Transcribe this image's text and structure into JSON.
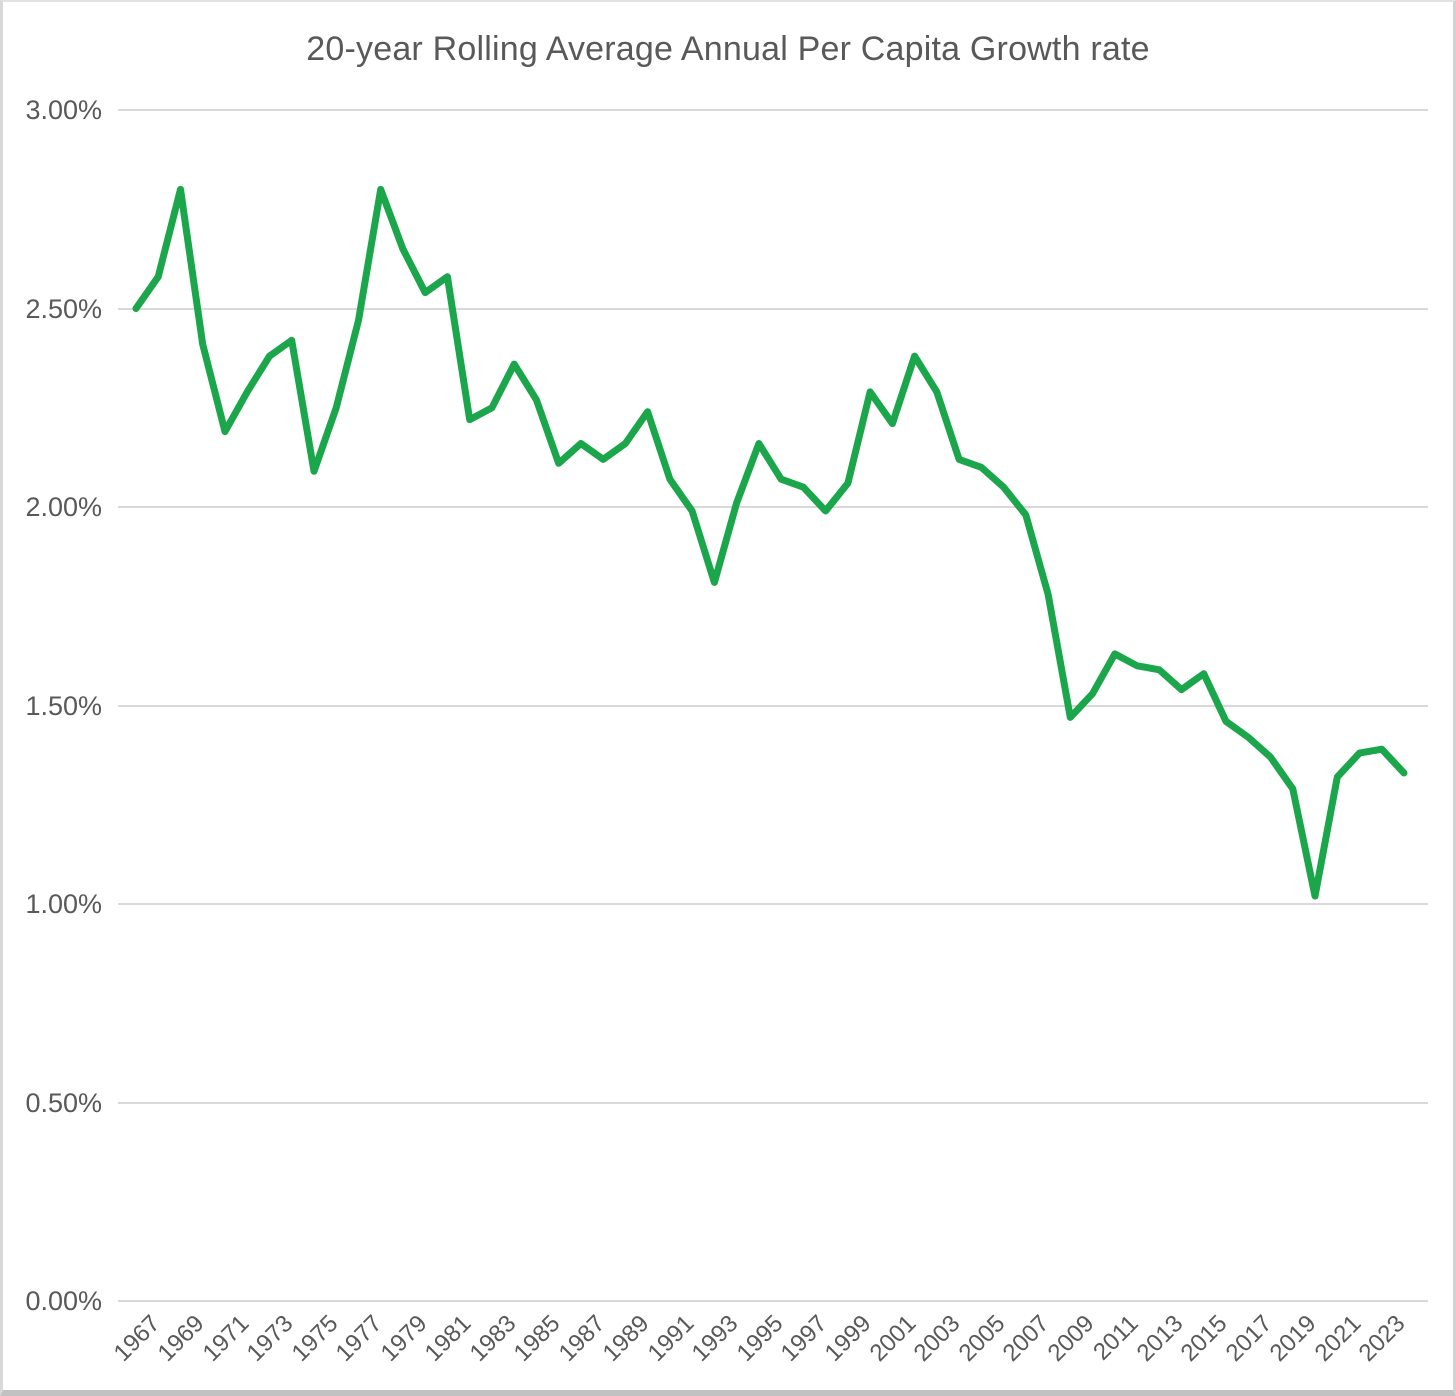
{
  "title": "20-year Rolling Average Annual Per Capita Growth rate",
  "chart_data": {
    "type": "line",
    "title": "20-year Rolling Average Annual Per Capita Growth rate",
    "xlabel": "",
    "ylabel": "",
    "ylim": [
      0,
      3.0
    ],
    "grid": true,
    "legend": "none",
    "line_color": "#1CA64C",
    "gridline_color": "#d9d9d9",
    "text_color": "#595959",
    "y_tick_labels": [
      "0.00%",
      "0.50%",
      "1.00%",
      "1.50%",
      "2.00%",
      "2.50%",
      "3.00%"
    ],
    "y_tick_values": [
      0,
      0.5,
      1.0,
      1.5,
      2.0,
      2.5,
      3.0
    ],
    "x_tick_labels": [
      "1967",
      "1969",
      "1971",
      "1973",
      "1975",
      "1977",
      "1979",
      "1981",
      "1983",
      "1985",
      "1987",
      "1989",
      "1991",
      "1993",
      "1995",
      "1997",
      "1999",
      "2001",
      "2003",
      "2005",
      "2007",
      "2009",
      "2011",
      "2013",
      "2015",
      "2017",
      "2019",
      "2021",
      "2023"
    ],
    "x": [
      1967,
      1968,
      1969,
      1970,
      1971,
      1972,
      1973,
      1974,
      1975,
      1976,
      1977,
      1978,
      1979,
      1980,
      1981,
      1982,
      1983,
      1984,
      1985,
      1986,
      1987,
      1988,
      1989,
      1990,
      1991,
      1992,
      1993,
      1994,
      1995,
      1996,
      1997,
      1998,
      1999,
      2000,
      2001,
      2002,
      2003,
      2004,
      2005,
      2006,
      2007,
      2008,
      2009,
      2010,
      2011,
      2012,
      2013,
      2014,
      2015,
      2016,
      2017,
      2018,
      2019,
      2020,
      2021,
      2022,
      2023,
      2024
    ],
    "series": [
      {
        "name": "20-year rolling average annual per capita growth rate (%)",
        "values": [
          2.5,
          2.58,
          2.8,
          2.41,
          2.19,
          2.29,
          2.38,
          2.42,
          2.09,
          2.25,
          2.47,
          2.8,
          2.65,
          2.54,
          2.58,
          2.22,
          2.25,
          2.36,
          2.27,
          2.11,
          2.16,
          2.12,
          2.16,
          2.24,
          2.07,
          1.99,
          1.81,
          2.01,
          2.16,
          2.07,
          2.05,
          1.99,
          2.06,
          2.29,
          2.21,
          2.38,
          2.29,
          2.12,
          2.1,
          2.05,
          1.98,
          1.78,
          1.47,
          1.53,
          1.63,
          1.6,
          1.59,
          1.54,
          1.58,
          1.46,
          1.42,
          1.37,
          1.29,
          1.02,
          1.32,
          1.38,
          1.39,
          1.33
        ]
      }
    ]
  }
}
